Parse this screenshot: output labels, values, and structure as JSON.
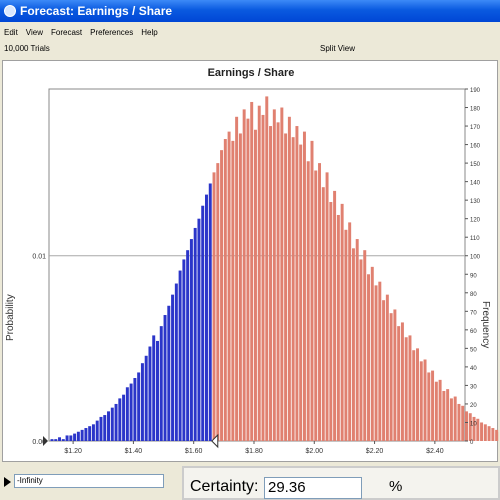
{
  "window": {
    "title": "Forecast: Earnings / Share"
  },
  "menu": [
    "Edit",
    "View",
    "Forecast",
    "Preferences",
    "Help"
  ],
  "toolbar": {
    "trials": "10,000 Trials",
    "view_mode": "Split View"
  },
  "chart_data": {
    "type": "bar",
    "title": "Earnings / Share",
    "ylabel_left": "Probability",
    "ylabel_right": "Frequency",
    "left_ticks": [
      "0.01",
      "0.00"
    ],
    "right_ticks": [
      0,
      10,
      20,
      30,
      40,
      50,
      60,
      70,
      80,
      90,
      100,
      110,
      120,
      130,
      140,
      150,
      160,
      170,
      180,
      190
    ],
    "x_ticks": [
      "$1.20",
      "$1.40",
      "$1.60",
      "$1.80",
      "$2.00",
      "$2.20",
      "$2.40"
    ],
    "x_range": [
      1.12,
      2.5
    ],
    "freq_range": [
      0,
      190
    ],
    "bin_start": 1.125,
    "bin_width": 0.0125,
    "split_value": 1.66,
    "colors": {
      "left": "#2b35c9",
      "right": "#e08070",
      "grid": "#a8a8a8"
    },
    "frequencies": [
      1,
      1,
      2,
      1,
      3,
      3,
      4,
      5,
      6,
      7,
      8,
      9,
      11,
      13,
      14,
      16,
      18,
      20,
      23,
      25,
      29,
      31,
      34,
      37,
      42,
      46,
      51,
      57,
      54,
      62,
      68,
      73,
      79,
      85,
      92,
      98,
      103,
      109,
      115,
      120,
      127,
      133,
      139,
      145,
      150,
      157,
      163,
      167,
      162,
      175,
      166,
      179,
      174,
      183,
      168,
      181,
      176,
      186,
      170,
      179,
      172,
      180,
      166,
      175,
      164,
      170,
      160,
      167,
      151,
      162,
      146,
      150,
      137,
      145,
      129,
      135,
      122,
      128,
      114,
      118,
      104,
      109,
      98,
      103,
      90,
      94,
      84,
      86,
      76,
      79,
      69,
      71,
      62,
      64,
      56,
      57,
      49,
      50,
      43,
      44,
      37,
      38,
      32,
      33,
      27,
      28,
      23,
      24,
      20,
      19,
      16,
      15,
      13,
      12,
      10,
      9,
      8,
      7,
      6,
      5
    ]
  },
  "split_marker": {
    "left_value": "-Infinity"
  },
  "certainty": {
    "label": "Certainty:",
    "value": "29.36",
    "unit": "%"
  }
}
